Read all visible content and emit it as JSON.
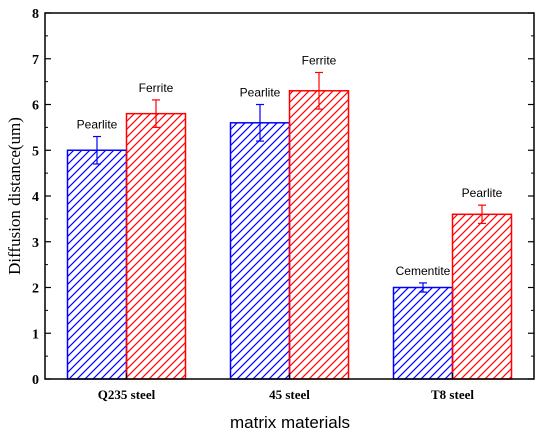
{
  "chart_data": {
    "type": "bar",
    "title": "",
    "xlabel": "matrix materials",
    "ylabel": "Diffusion distance(um)",
    "ylim": [
      0,
      8
    ],
    "yticks": [
      0,
      1,
      2,
      3,
      4,
      5,
      6,
      7,
      8
    ],
    "grid": false,
    "categories": [
      "Q235 steel",
      "45 steel",
      "T8 steel"
    ],
    "series": [
      {
        "color": "#0000ff",
        "hatch": "diagonal",
        "values": [
          5.0,
          5.6,
          2.0
        ],
        "errors": [
          0.3,
          0.4,
          0.1
        ],
        "labels": [
          "Pearlite",
          "Pearlite",
          "Cementite"
        ]
      },
      {
        "color": "#ff0000",
        "hatch": "diagonal",
        "values": [
          5.8,
          6.3,
          3.6
        ],
        "errors": [
          0.3,
          0.4,
          0.2
        ],
        "labels": [
          "Ferrite",
          "Ferrite",
          "Pearlite"
        ]
      }
    ]
  }
}
